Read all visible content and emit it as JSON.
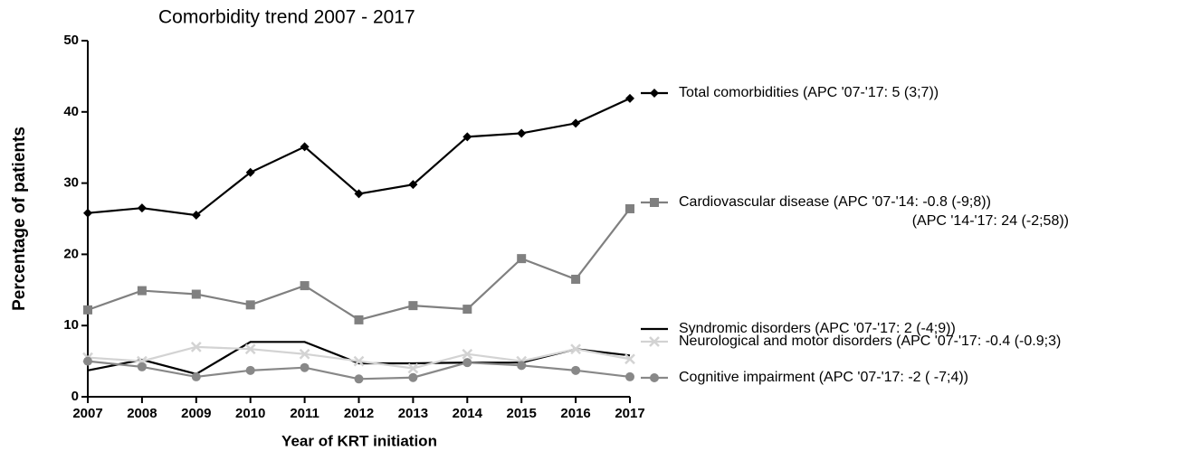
{
  "chart_data": {
    "type": "line",
    "title": "Comorbidity trend 2007 - 2017",
    "x_label": "Year of KRT initiation",
    "y_label": "Percentage of patients",
    "x": [
      2007,
      2008,
      2009,
      2010,
      2011,
      2012,
      2013,
      2014,
      2015,
      2016,
      2017
    ],
    "xlim": [
      2007,
      2017
    ],
    "xticks": [
      2007,
      2008,
      2009,
      2010,
      2011,
      2012,
      2013,
      2014,
      2015,
      2016,
      2017
    ],
    "ylim": [
      0,
      50
    ],
    "yticks": [
      0,
      10,
      20,
      30,
      40,
      50
    ],
    "series": [
      {
        "name": "Total comorbidities (APC '07-'17: 5 (3;7))",
        "color": "#000000",
        "marker": "diamond",
        "values": [
          25.8,
          26.5,
          25.5,
          31.5,
          35.1,
          28.5,
          29.8,
          36.5,
          37.0,
          38.4,
          41.9
        ]
      },
      {
        "name": "Cardiovascular disease (APC '07-'14: -0.8 (-9;8))",
        "name_continued": "(APC '14-'17: 24 (-2;58))",
        "color": "#808080",
        "marker": "square",
        "values": [
          12.2,
          14.9,
          14.4,
          12.9,
          15.6,
          10.8,
          12.8,
          12.3,
          19.4,
          16.5,
          26.4
        ]
      },
      {
        "name": "Syndromic disorders (APC '07-'17: 2 (-4;9))",
        "color": "#000000",
        "marker": "none",
        "values": [
          3.7,
          5.2,
          3.2,
          7.7,
          7.7,
          4.7,
          4.7,
          4.8,
          4.8,
          6.7,
          5.8
        ]
      },
      {
        "name": "Neurological and motor disorders (APC '07-'17: -0.4 (-0.9;3)",
        "color": "#d3d3d3",
        "marker": "cross",
        "values": [
          5.5,
          5.0,
          7.0,
          6.7,
          6.0,
          5.0,
          4.0,
          6.0,
          5.0,
          6.7,
          5.3
        ]
      },
      {
        "name": "Cognitive impairment (APC '07-'17: -2 ( -7;4))",
        "color": "#888888",
        "marker": "circle",
        "values": [
          5.0,
          4.2,
          2.8,
          3.7,
          4.1,
          2.5,
          2.7,
          4.8,
          4.4,
          3.7,
          2.8
        ]
      }
    ]
  }
}
